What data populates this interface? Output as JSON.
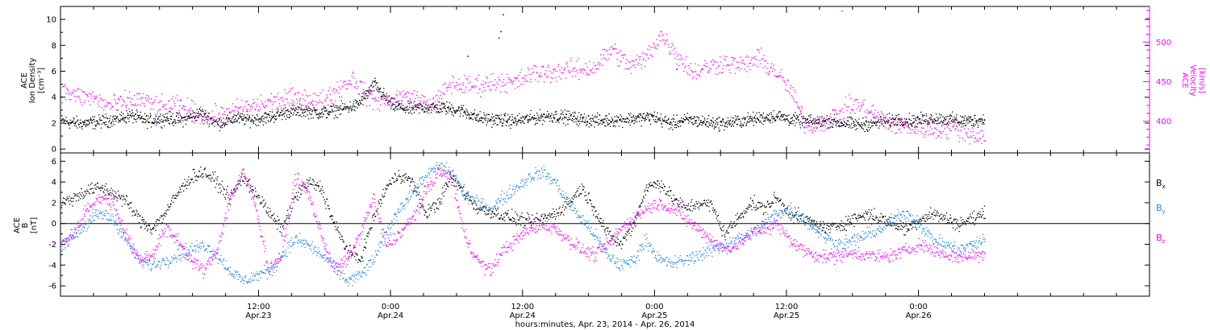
{
  "chart_data": [
    {
      "type": "scatter",
      "panel": "top",
      "ylabel_left": [
        "ACE",
        "Ion Density",
        "[cm⁻³]"
      ],
      "ylabel_right": [
        "ACE",
        "Velocity",
        "[km/s]"
      ],
      "y_left_ticks": [
        "0",
        "2",
        "4",
        "6",
        "8",
        "10"
      ],
      "y_left_range": [
        -0.3,
        11
      ],
      "y_right_ticks": [
        "400",
        "450",
        "500"
      ],
      "y_right_range": [
        360,
        545
      ],
      "colors": {
        "density": "#000000",
        "velocity": "#ff00ff"
      },
      "series": [
        {
          "key": "density",
          "axis": "left",
          "values": [
            2.2,
            2.0,
            2.1,
            2.3,
            2.6,
            2.2,
            2.4,
            2.3,
            2.8,
            2.0,
            2.4,
            2.3,
            2.5,
            2.9,
            3.0,
            2.8,
            3.1,
            3.4,
            5.0,
            3.4,
            3.1,
            3.3,
            3.2,
            3.0,
            2.4,
            2.3,
            2.2,
            2.4,
            2.6,
            2.5,
            2.3,
            2.2,
            2.3,
            2.4,
            2.5,
            2.0,
            2.3,
            2.1,
            2.0,
            2.2,
            2.4,
            2.6,
            2.3,
            2.1,
            2.2,
            2.0,
            1.9,
            2.1,
            2.3,
            2.2,
            2.4,
            2.3,
            2.2,
            2.3
          ]
        },
        {
          "key": "velocity",
          "axis": "right",
          "values": [
            440,
            432,
            430,
            420,
            425,
            428,
            418,
            420,
            415,
            405,
            410,
            415,
            420,
            425,
            428,
            430,
            425,
            440,
            455,
            430,
            425,
            432,
            428,
            420,
            448,
            445,
            447,
            452,
            448,
            460,
            462,
            465,
            465,
            470,
            492,
            470,
            478,
            510,
            485,
            462,
            470,
            475,
            470,
            480,
            465,
            440,
            395,
            400,
            410,
            422,
            412,
            398,
            395,
            392,
            390,
            392,
            385,
            380
          ]
        }
      ],
      "outliers": [
        {
          "series": "density",
          "x": 34.2,
          "y": 10.4
        },
        {
          "series": "density",
          "x": 34.0,
          "y": 9.1
        },
        {
          "series": "density",
          "x": 33.8,
          "y": 8.6
        },
        {
          "series": "density",
          "x": 31.0,
          "y": 7.2
        },
        {
          "series": "density",
          "x": 50.0,
          "y": 6.2
        },
        {
          "series": "velocity",
          "x": 65.0,
          "y": 540
        }
      ]
    },
    {
      "type": "scatter",
      "panel": "bottom",
      "ylabel_left": [
        "ACE",
        "B",
        "[nT]"
      ],
      "y_ticks": [
        "-6",
        "-4",
        "-2",
        "0",
        "2",
        "4",
        "6"
      ],
      "y_range": [
        -7,
        6.8
      ],
      "zero_line": true,
      "legend": [
        "Bx",
        "By",
        "Bz"
      ],
      "legend_position": "right",
      "colors": {
        "Bx": "#000000",
        "By": "#1e88e5",
        "Bz": "#ff00ff"
      },
      "series": [
        {
          "key": "Bx",
          "values": [
            2.0,
            2.5,
            3.2,
            3.5,
            3.0,
            2.2,
            0.5,
            -0.5,
            1.0,
            3.0,
            4.5,
            5.0,
            4.0,
            2.5,
            4.5,
            3.0,
            1.0,
            -0.5,
            2.5,
            4.0,
            3.5,
            0.0,
            -2.5,
            -3.5,
            0.5,
            3.5,
            4.8,
            4.0,
            1.0,
            2.0,
            4.5,
            3.0,
            1.5,
            1.2,
            0.8,
            0.5,
            0.2,
            0.5,
            1.0,
            2.0,
            3.5,
            1.5,
            -1.0,
            -2.0,
            0.0,
            3.5,
            4.0,
            2.5,
            1.5,
            2.0,
            1.8,
            -1.0,
            0.5,
            2.0,
            1.5,
            2.5,
            1.0,
            0.5,
            0.0,
            -0.5,
            0.0,
            0.5,
            1.0,
            0.5,
            0.0,
            -0.5,
            0.5,
            1.0,
            0.5,
            0.0,
            0.5,
            1.0
          ]
        },
        {
          "key": "By",
          "values": [
            -2.0,
            -1.0,
            0.0,
            1.0,
            0.5,
            -1.5,
            -3.5,
            -4.0,
            -3.5,
            -3.0,
            -2.5,
            -2.0,
            -3.0,
            -4.5,
            -5.5,
            -5.0,
            -4.5,
            -3.0,
            -1.5,
            -2.0,
            -3.0,
            -4.0,
            -5.5,
            -5.0,
            -3.5,
            -1.0,
            1.5,
            3.0,
            4.5,
            5.5,
            5.0,
            3.0,
            2.0,
            1.5,
            2.5,
            3.5,
            4.5,
            5.0,
            4.0,
            2.0,
            0.5,
            -1.0,
            -3.0,
            -4.0,
            -3.5,
            -1.5,
            -3.5,
            -3.8,
            -3.5,
            -3.0,
            -2.5,
            -2.0,
            -1.5,
            -1.0,
            0.0,
            1.0,
            1.5,
            0.5,
            -0.5,
            -1.5,
            -2.0,
            -1.5,
            -1.0,
            -0.5,
            0.5,
            1.0,
            0.0,
            -1.5,
            -2.0,
            -2.5,
            -2.0,
            -1.5
          ]
        },
        {
          "key": "Bz",
          "values": [
            -2.0,
            -1.0,
            1.5,
            2.5,
            2.0,
            -1.0,
            -3.5,
            -3.0,
            -0.5,
            -1.5,
            -3.5,
            -4.5,
            -2.5,
            2.5,
            5.0,
            1.5,
            -4.5,
            -3.0,
            4.5,
            3.0,
            -1.0,
            -4.5,
            -3.5,
            -1.0,
            2.5,
            -2.0,
            -1.0,
            0.5,
            3.0,
            5.0,
            4.5,
            -1.0,
            -3.5,
            -4.5,
            -2.5,
            -1.5,
            -0.5,
            0.0,
            -0.5,
            -1.5,
            -2.5,
            -3.0,
            -2.0,
            -0.5,
            0.5,
            1.5,
            2.0,
            1.5,
            0.5,
            -0.5,
            -1.5,
            -2.5,
            -2.0,
            -1.0,
            -0.5,
            0.0,
            -1.5,
            -2.5,
            -3.0,
            -3.2,
            -3.0,
            -2.8,
            -3.0,
            -3.2,
            -3.0,
            -2.5,
            -2.0,
            -2.5,
            -3.0,
            -3.2,
            -3.0,
            -3.0
          ]
        }
      ]
    }
  ],
  "x_axis": {
    "range_hours": [
      -6,
      93
    ],
    "data_end_hours": 78,
    "major_ticks": [
      {
        "hours": 12,
        "time": "12:00",
        "date": "Apr.23"
      },
      {
        "hours": 24,
        "time": "0:00",
        "date": "Apr.24"
      },
      {
        "hours": 36,
        "time": "12:00",
        "date": "Apr.24"
      },
      {
        "hours": 48,
        "time": "0:00",
        "date": "Apr.25"
      },
      {
        "hours": 60,
        "time": "12:00",
        "date": "Apr.25"
      },
      {
        "hours": 72,
        "time": "0:00",
        "date": "Apr.26"
      }
    ],
    "minor_tick_step_hours": 3,
    "title": "hours:minutes, Apr. 23, 2014 - Apr. 26, 2014"
  }
}
